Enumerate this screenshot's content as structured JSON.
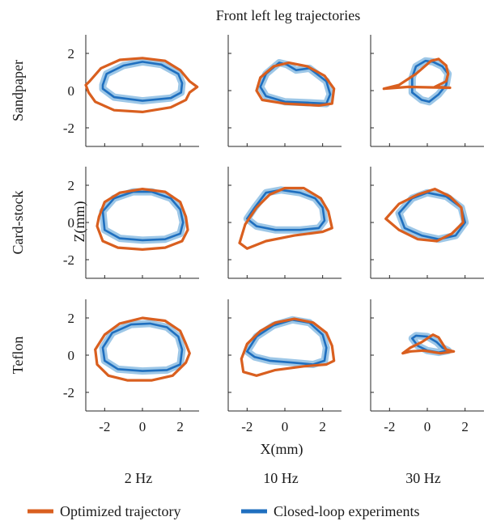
{
  "chart_data": {
    "type": "line",
    "title": "Front left leg trajectories",
    "xlabel": "X(mm)",
    "ylabel": "Z(mm)",
    "xlim": [
      -3,
      3
    ],
    "ylim": [
      -3,
      3
    ],
    "xticks": [
      -2,
      0,
      2
    ],
    "yticks": [
      -2,
      0,
      2
    ],
    "rows": [
      "Sandpaper",
      "Card-stock",
      "Teflon"
    ],
    "columns": [
      "2 Hz",
      "10 Hz",
      "30 Hz"
    ],
    "grid": false,
    "legend_position": "bottom",
    "series": [
      {
        "name": "Optimized trajectory",
        "color": "#D95F1F"
      },
      {
        "name": "Closed-loop experiments",
        "color": "#1F6FBF",
        "band_color": "#8CBDE3"
      }
    ],
    "panels": [
      {
        "row": "Sandpaper",
        "column": "2 Hz",
        "optimized": [
          [
            -3,
            0.3
          ],
          [
            -2.8,
            0.5
          ],
          [
            -2.2,
            1.2
          ],
          [
            -1.2,
            1.65
          ],
          [
            0,
            1.75
          ],
          [
            1.2,
            1.6
          ],
          [
            2,
            1.1
          ],
          [
            2.5,
            0.5
          ],
          [
            2.9,
            0.2
          ],
          [
            2.5,
            -0.1
          ],
          [
            2.3,
            -0.5
          ],
          [
            1.5,
            -0.9
          ],
          [
            0,
            -1.15
          ],
          [
            -1.5,
            -1.05
          ],
          [
            -2.5,
            -0.6
          ],
          [
            -2.85,
            -0.1
          ],
          [
            -3,
            0.3
          ]
        ],
        "experiment": [
          [
            -2.1,
            0.3
          ],
          [
            -1.9,
            0.9
          ],
          [
            -1,
            1.35
          ],
          [
            0,
            1.55
          ],
          [
            1,
            1.4
          ],
          [
            1.9,
            0.9
          ],
          [
            2.1,
            0.4
          ],
          [
            2.05,
            -0.1
          ],
          [
            1.5,
            -0.4
          ],
          [
            0,
            -0.55
          ],
          [
            -1.5,
            -0.35
          ],
          [
            -2.1,
            0.1
          ],
          [
            -2.1,
            0.3
          ]
        ]
      },
      {
        "row": "Sandpaper",
        "column": "10 Hz",
        "optimized": [
          [
            -1.5,
            0
          ],
          [
            -1.3,
            0.7
          ],
          [
            -0.6,
            1.3
          ],
          [
            0.2,
            1.5
          ],
          [
            1.2,
            1.3
          ],
          [
            2.1,
            0.8
          ],
          [
            2.6,
            0.1
          ],
          [
            2.5,
            -0.7
          ],
          [
            1.8,
            -0.8
          ],
          [
            0,
            -0.7
          ],
          [
            -1.2,
            -0.5
          ],
          [
            -1.5,
            0
          ]
        ],
        "experiment": [
          [
            -1.3,
            0.2
          ],
          [
            -1,
            0.9
          ],
          [
            -0.3,
            1.5
          ],
          [
            0.1,
            1.4
          ],
          [
            0.6,
            1.1
          ],
          [
            1.3,
            1.2
          ],
          [
            2.2,
            0.5
          ],
          [
            2.4,
            -0.2
          ],
          [
            2.2,
            -0.7
          ],
          [
            1.3,
            -0.65
          ],
          [
            0,
            -0.6
          ],
          [
            -1,
            -0.3
          ],
          [
            -1.3,
            0.2
          ]
        ]
      },
      {
        "row": "Sandpaper",
        "column": "30 Hz",
        "optimized": [
          [
            -2.3,
            0.1
          ],
          [
            -1.5,
            0.3
          ],
          [
            -0.6,
            0.9
          ],
          [
            0.2,
            1.6
          ],
          [
            0.6,
            1.7
          ],
          [
            1,
            1.35
          ],
          [
            1.1,
            0.9
          ],
          [
            1,
            0.5
          ],
          [
            0.4,
            0.2
          ],
          [
            1.2,
            0.15
          ],
          [
            -1,
            0.2
          ],
          [
            -2.3,
            0.1
          ]
        ],
        "experiment": [
          [
            -0.8,
            0.7
          ],
          [
            -0.6,
            1.3
          ],
          [
            -0.1,
            1.6
          ],
          [
            0.3,
            1.55
          ],
          [
            0.8,
            1.3
          ],
          [
            1.1,
            0.9
          ],
          [
            1,
            0.3
          ],
          [
            0.6,
            -0.2
          ],
          [
            0.1,
            -0.6
          ],
          [
            -0.3,
            -0.5
          ],
          [
            -0.8,
            -0.1
          ],
          [
            -0.8,
            0.7
          ]
        ]
      },
      {
        "row": "Card-stock",
        "column": "2 Hz",
        "optimized": [
          [
            -2.3,
            0.3
          ],
          [
            -2,
            1.1
          ],
          [
            -1.2,
            1.6
          ],
          [
            0,
            1.8
          ],
          [
            1.2,
            1.65
          ],
          [
            2,
            1.1
          ],
          [
            2.3,
            0.3
          ],
          [
            2.4,
            -0.4
          ],
          [
            2.1,
            -1
          ],
          [
            1.2,
            -1.35
          ],
          [
            0,
            -1.45
          ],
          [
            -1.3,
            -1.35
          ],
          [
            -2.1,
            -1
          ],
          [
            -2.4,
            -0.2
          ],
          [
            -2.3,
            0.3
          ]
        ],
        "experiment": [
          [
            -2.1,
            0.6
          ],
          [
            -1.5,
            1.3
          ],
          [
            -0.5,
            1.65
          ],
          [
            0.5,
            1.65
          ],
          [
            1.5,
            1.3
          ],
          [
            2,
            0.7
          ],
          [
            2.15,
            0
          ],
          [
            2,
            -0.6
          ],
          [
            1.2,
            -0.9
          ],
          [
            0,
            -0.95
          ],
          [
            -1.2,
            -0.85
          ],
          [
            -2,
            -0.4
          ],
          [
            -2.1,
            0.6
          ]
        ]
      },
      {
        "row": "Card-stock",
        "column": "10 Hz",
        "optimized": [
          [
            -2.4,
            -1.1
          ],
          [
            -2.1,
            -0.1
          ],
          [
            -1.5,
            0.8
          ],
          [
            -0.8,
            1.5
          ],
          [
            0,
            1.85
          ],
          [
            1,
            1.85
          ],
          [
            1.9,
            1.3
          ],
          [
            2.3,
            0.6
          ],
          [
            2.5,
            -0.3
          ],
          [
            2,
            -0.5
          ],
          [
            0.5,
            -0.7
          ],
          [
            -1,
            -1
          ],
          [
            -2,
            -1.4
          ],
          [
            -2.4,
            -1.1
          ]
        ],
        "experiment": [
          [
            -2,
            0.2
          ],
          [
            -1.6,
            0.8
          ],
          [
            -1,
            1.6
          ],
          [
            -0.2,
            1.75
          ],
          [
            0.8,
            1.6
          ],
          [
            1.6,
            1.3
          ],
          [
            2,
            0.8
          ],
          [
            2.1,
            0.1
          ],
          [
            1.8,
            -0.3
          ],
          [
            0.8,
            -0.4
          ],
          [
            -0.5,
            -0.4
          ],
          [
            -1.5,
            -0.2
          ],
          [
            -2,
            0.2
          ]
        ]
      },
      {
        "row": "Card-stock",
        "column": "30 Hz",
        "optimized": [
          [
            -2.2,
            0.2
          ],
          [
            -1.5,
            1
          ],
          [
            -0.5,
            1.5
          ],
          [
            0.4,
            1.8
          ],
          [
            1.2,
            1.4
          ],
          [
            1.8,
            0.8
          ],
          [
            1.9,
            0
          ],
          [
            1.3,
            -0.6
          ],
          [
            0.5,
            -1
          ],
          [
            -0.5,
            -0.9
          ],
          [
            -1.5,
            -0.4
          ],
          [
            -2.2,
            0.2
          ]
        ],
        "experiment": [
          [
            -1.5,
            0.5
          ],
          [
            -0.8,
            1.3
          ],
          [
            0,
            1.6
          ],
          [
            1,
            1.4
          ],
          [
            1.8,
            0.8
          ],
          [
            2,
            0
          ],
          [
            1.5,
            -0.7
          ],
          [
            0.6,
            -0.9
          ],
          [
            -0.3,
            -0.7
          ],
          [
            -1.2,
            -0.3
          ],
          [
            -1.5,
            0.5
          ]
        ]
      },
      {
        "row": "Teflon",
        "column": "2 Hz",
        "optimized": [
          [
            -2.5,
            0.3
          ],
          [
            -2,
            1.1
          ],
          [
            -1.2,
            1.7
          ],
          [
            0,
            2
          ],
          [
            1.2,
            1.85
          ],
          [
            2,
            1.3
          ],
          [
            2.3,
            0.6
          ],
          [
            2.5,
            0.1
          ],
          [
            2.3,
            -0.4
          ],
          [
            1.6,
            -1.1
          ],
          [
            0.5,
            -1.35
          ],
          [
            -0.8,
            -1.35
          ],
          [
            -1.8,
            -1.1
          ],
          [
            -2.4,
            -0.5
          ],
          [
            -2.5,
            0.3
          ]
        ],
        "experiment": [
          [
            -2.1,
            0.4
          ],
          [
            -1.6,
            1.2
          ],
          [
            -0.6,
            1.65
          ],
          [
            0.4,
            1.7
          ],
          [
            1.3,
            1.5
          ],
          [
            1.9,
            1
          ],
          [
            2.1,
            0.3
          ],
          [
            2,
            -0.5
          ],
          [
            1.3,
            -0.8
          ],
          [
            0,
            -0.85
          ],
          [
            -1.3,
            -0.75
          ],
          [
            -2,
            -0.3
          ],
          [
            -2.1,
            0.4
          ]
        ]
      },
      {
        "row": "Teflon",
        "column": "10 Hz",
        "optimized": [
          [
            -2.3,
            -0.2
          ],
          [
            -2,
            0.6
          ],
          [
            -1.3,
            1.3
          ],
          [
            -0.5,
            1.75
          ],
          [
            0.5,
            1.95
          ],
          [
            1.5,
            1.75
          ],
          [
            2.2,
            1.2
          ],
          [
            2.5,
            0.5
          ],
          [
            2.6,
            -0.3
          ],
          [
            2.2,
            -0.5
          ],
          [
            1,
            -0.6
          ],
          [
            -0.5,
            -0.8
          ],
          [
            -1.5,
            -1.1
          ],
          [
            -2.2,
            -0.9
          ],
          [
            -2.3,
            -0.2
          ]
        ],
        "experiment": [
          [
            -2,
            0.2
          ],
          [
            -1.5,
            1
          ],
          [
            -0.6,
            1.6
          ],
          [
            0.4,
            1.9
          ],
          [
            1.3,
            1.75
          ],
          [
            2,
            1.1
          ],
          [
            2.2,
            0.4
          ],
          [
            2.1,
            -0.3
          ],
          [
            1.5,
            -0.5
          ],
          [
            0.4,
            -0.4
          ],
          [
            -0.8,
            -0.3
          ],
          [
            -1.6,
            -0.1
          ],
          [
            -2,
            0.2
          ]
        ]
      },
      {
        "row": "Teflon",
        "column": "30 Hz",
        "optimized": [
          [
            -1.3,
            0.1
          ],
          [
            -0.9,
            0.4
          ],
          [
            -0.3,
            0.7
          ],
          [
            0.3,
            1.1
          ],
          [
            0.6,
            0.95
          ],
          [
            1,
            0.3
          ],
          [
            1.4,
            0.2
          ],
          [
            0.7,
            0.1
          ],
          [
            -0.2,
            0.25
          ],
          [
            -0.9,
            0.2
          ],
          [
            -1.3,
            0.1
          ]
        ],
        "experiment": [
          [
            -0.8,
            0.9
          ],
          [
            -0.6,
            1.05
          ],
          [
            0,
            1
          ],
          [
            0.5,
            0.7
          ],
          [
            0.8,
            0.4
          ],
          [
            1.1,
            0.25
          ],
          [
            0.6,
            0.15
          ],
          [
            0,
            0.25
          ],
          [
            -0.5,
            0.5
          ],
          [
            -0.8,
            0.9
          ]
        ]
      }
    ]
  }
}
